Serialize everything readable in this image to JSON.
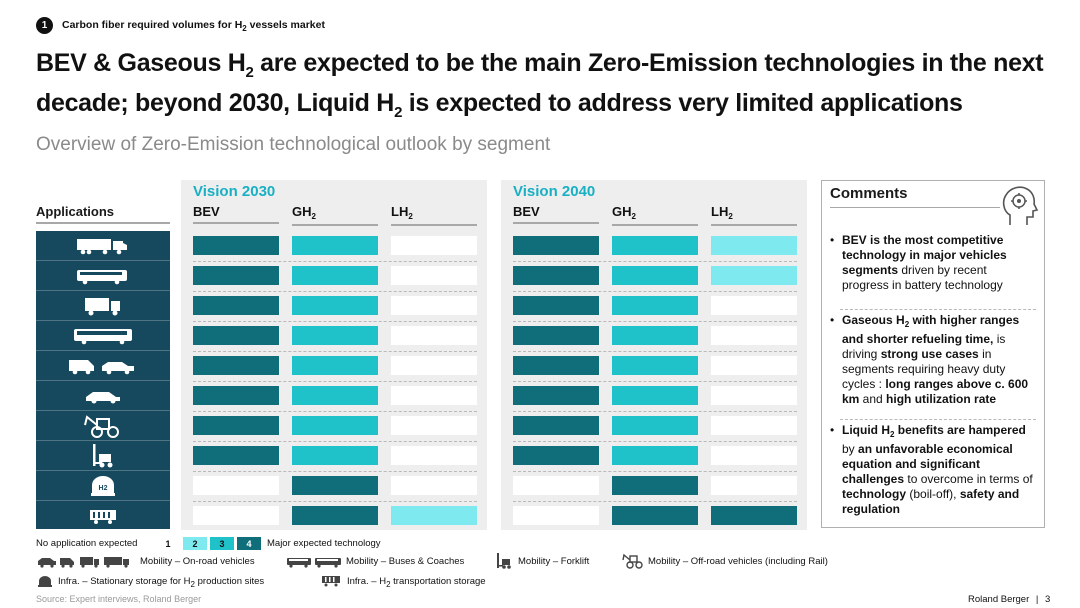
{
  "header": {
    "section_number": "1",
    "section_title_pre": "Carbon fiber required volumes for H",
    "section_title_sub": "2",
    "section_title_post": " vessels market",
    "headline_p1": "BEV & Gaseous H",
    "headline_sub1": "2",
    "headline_p2": " are expected to be the main Zero-Emission technologies in the next decade; beyond 2030, Liquid H",
    "headline_sub2": "2",
    "headline_p3": " is expected to address very limited applications",
    "subtitle": "Overview of Zero-Emission technological outlook by segment"
  },
  "applications": {
    "label": "Applications",
    "rows": [
      {
        "icon": "truck-trailer-icon"
      },
      {
        "icon": "coach-bus-icon"
      },
      {
        "icon": "delivery-truck-icon"
      },
      {
        "icon": "city-bus-icon"
      },
      {
        "icon": "van-and-car-icon"
      },
      {
        "icon": "passenger-car-icon"
      },
      {
        "icon": "tractor-excavator-icon"
      },
      {
        "icon": "forklift-icon"
      },
      {
        "icon": "h2-storage-tank-icon"
      },
      {
        "icon": "h2-rail-wagon-icon"
      }
    ]
  },
  "vision_2030": {
    "title": "Vision 2030",
    "col_bev": "BEV",
    "col_gh2": "GH",
    "col_lh2": "LH",
    "h2_sub": "2",
    "scores": [
      [
        4,
        3,
        1
      ],
      [
        4,
        3,
        1
      ],
      [
        4,
        3,
        1
      ],
      [
        4,
        3,
        1
      ],
      [
        4,
        3,
        1
      ],
      [
        4,
        3,
        1
      ],
      [
        4,
        3,
        1
      ],
      [
        4,
        3,
        1
      ],
      [
        1,
        4,
        1
      ],
      [
        1,
        4,
        2
      ]
    ]
  },
  "vision_2040": {
    "title": "Vision 2040",
    "col_bev": "BEV",
    "col_gh2": "GH",
    "col_lh2": "LH",
    "h2_sub": "2",
    "scores": [
      [
        4,
        3,
        2
      ],
      [
        4,
        3,
        2
      ],
      [
        4,
        3,
        1
      ],
      [
        4,
        3,
        1
      ],
      [
        4,
        3,
        1
      ],
      [
        4,
        3,
        1
      ],
      [
        4,
        3,
        1
      ],
      [
        4,
        3,
        1
      ],
      [
        1,
        4,
        1
      ],
      [
        1,
        4,
        4
      ]
    ]
  },
  "colors": {
    "level_1": "#ffffff",
    "level_2": "#7ee9ee",
    "level_3": "#1fc2c9",
    "level_4": "#0f6e7a",
    "applications_bg": "#17495e",
    "vision_title": "#1ab0c4"
  },
  "comments": {
    "title": "Comments",
    "icon": "head-gear-icon",
    "b1_bold": "BEV is the most competitive technology in major vehicles segments",
    "b1_rest": " driven by recent progress in battery technology",
    "b2_bold1": "Gaseous H",
    "b2_sub": "2",
    "b2_bold2": " with higher ranges and shorter refueling time,",
    "b2_t1": " is driving ",
    "b2_bold3": "strong use cases",
    "b2_t2": " in segments requiring heavy duty cycles : ",
    "b2_bold4": "long ranges above c. 600 km",
    "b2_t3": " and ",
    "b2_bold5": "high utilization rate",
    "b3_bold1": "Liquid H",
    "b3_sub": "2",
    "b3_bold2": " benefits are hampered",
    "b3_t1": " by ",
    "b3_bold3": "an unfavorable economical equation and significant challenges",
    "b3_t2": " to overcome in terms of ",
    "b3_bold4": "technology",
    "b3_t3": " (boil-off), ",
    "b3_bold5": "safety and regulation"
  },
  "legend": {
    "no_application": "No application expected",
    "major": "Major expected technology",
    "levels": [
      "1",
      "2",
      "3",
      "4"
    ],
    "onroad": "Mobility – On-road vehicles",
    "buses": "Mobility – Buses & Coaches",
    "forklift": "Mobility – Forklift",
    "offroad": "Mobility – Off-road vehicles (including Rail)",
    "infra_storage_pre": "Infra. – Stationary storage for H",
    "infra_storage_sub": "2",
    "infra_storage_post": " production sites",
    "infra_transport_pre": "Infra. – H",
    "infra_transport_sub": "2",
    "infra_transport_post": " transportation storage"
  },
  "footer": {
    "source": "Source: Expert interviews, Roland Berger",
    "brand": "Roland Berger",
    "divider": "|",
    "page": "3"
  }
}
